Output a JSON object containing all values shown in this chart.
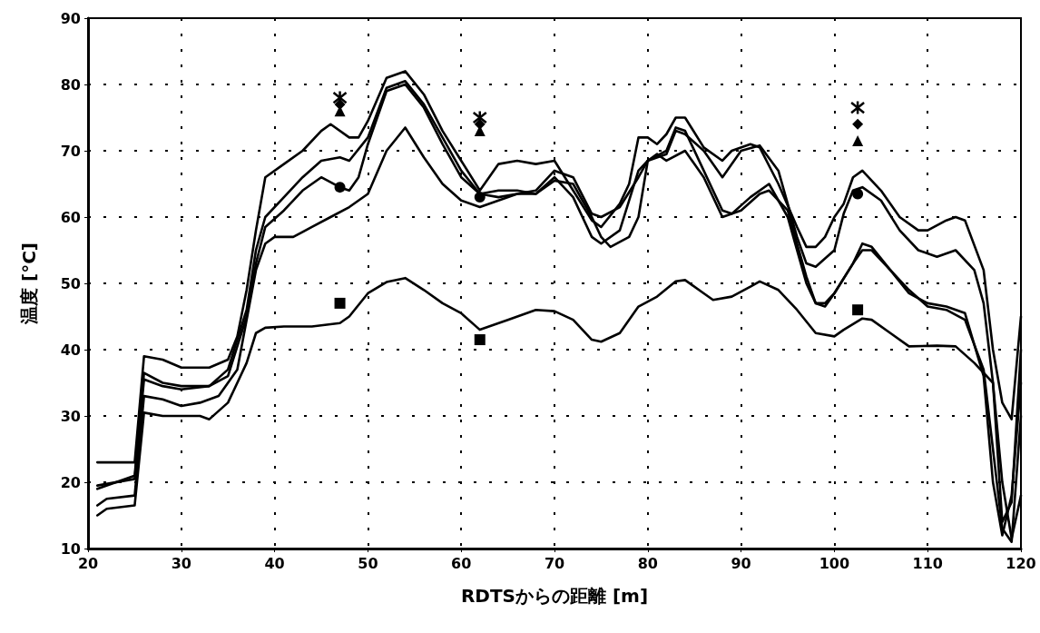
{
  "chart_data": {
    "type": "line",
    "xlabel": "RDTSからの距離 [m]",
    "ylabel": "温度 [°C]",
    "xlim": [
      20,
      120
    ],
    "xticks": [
      20,
      30,
      40,
      50,
      60,
      70,
      80,
      90,
      100,
      110,
      120
    ],
    "ylim": [
      10,
      90
    ],
    "yticks": [
      10,
      20,
      30,
      40,
      50,
      60,
      70,
      80,
      90
    ],
    "grid": true,
    "marker": "none",
    "line_style": "solid",
    "series": [
      {
        "color": "#000000",
        "x": [
          21,
          25,
          26,
          28,
          30,
          33,
          35,
          36,
          37,
          38,
          39,
          41,
          43,
          45,
          46,
          48,
          49,
          50,
          52,
          54,
          56,
          58,
          60,
          62,
          64,
          66,
          68,
          70,
          72,
          74,
          75,
          77,
          78,
          79,
          80,
          81,
          82,
          83,
          84,
          86,
          88,
          89,
          91,
          92,
          94,
          96,
          97,
          98,
          99,
          100,
          101,
          102,
          103,
          105,
          107,
          109,
          110,
          112,
          113,
          114,
          116,
          117,
          118,
          119,
          120
        ],
        "values": [
          23,
          23,
          39,
          38.5,
          37.3,
          37.3,
          38.5,
          42,
          49,
          58,
          66,
          68,
          70,
          73,
          74,
          72,
          72,
          74.5,
          81,
          82,
          78.5,
          73,
          68.5,
          64,
          68,
          68.5,
          68,
          68.5,
          64,
          59.5,
          58.5,
          62,
          65,
          72,
          72,
          71,
          72.5,
          75,
          75,
          70.5,
          68.5,
          70,
          71,
          70.5,
          65,
          58.5,
          55.5,
          55.5,
          57,
          60,
          62,
          66,
          67,
          64,
          60,
          58,
          58,
          59.5,
          60,
          59.5,
          52,
          40,
          32,
          29.5,
          45
        ]
      },
      {
        "color": "#000000",
        "x": [
          21,
          25,
          26,
          28,
          30,
          33,
          35,
          37,
          38,
          39,
          41,
          43,
          45,
          47,
          48,
          50,
          52,
          54,
          56,
          58,
          60,
          62,
          64,
          66,
          68,
          70,
          72,
          74,
          75,
          77,
          79,
          80,
          82,
          83,
          84,
          86,
          88,
          89,
          91,
          93,
          95,
          97,
          98,
          99,
          100,
          102,
          103,
          104,
          106,
          108,
          110,
          112,
          114,
          116,
          117,
          118,
          119,
          120
        ],
        "values": [
          19,
          21,
          36.5,
          35,
          34.5,
          34.5,
          37,
          46,
          55,
          60,
          63,
          66,
          68.5,
          69,
          68.5,
          72,
          79.5,
          80.5,
          77,
          72,
          67,
          63.5,
          64,
          64,
          63.5,
          66,
          63,
          57,
          56,
          58,
          67,
          68.5,
          70,
          73.5,
          73,
          67,
          61,
          60.5,
          63,
          65,
          60,
          50,
          47,
          47,
          48.5,
          53,
          56,
          55.5,
          52,
          48.5,
          47,
          46.5,
          45.5,
          36,
          20,
          12,
          18,
          35
        ]
      },
      {
        "color": "#000000",
        "x": [
          21,
          25,
          26,
          28,
          30,
          33,
          35,
          37,
          38,
          39,
          41,
          43,
          45,
          47,
          48,
          49,
          50,
          52,
          54,
          56,
          58,
          60,
          62,
          64,
          66,
          68,
          70,
          72,
          74,
          75,
          77,
          79,
          80,
          82,
          83,
          84,
          86,
          88,
          90,
          92,
          94,
          96,
          97,
          98,
          100,
          101,
          102,
          103,
          105,
          107,
          109,
          111,
          113,
          115,
          116,
          117,
          118,
          119,
          120
        ],
        "values": [
          19.5,
          20.5,
          35.5,
          34.5,
          34,
          34.5,
          36,
          45,
          53,
          58.5,
          61,
          64,
          66,
          64.5,
          64,
          66,
          71,
          79,
          80,
          76.5,
          71,
          66,
          63.5,
          63,
          63.5,
          64,
          67,
          66,
          60.5,
          60,
          61.5,
          66,
          68.5,
          69.5,
          73,
          72.5,
          70,
          66,
          70,
          70.8,
          67,
          57,
          53,
          52.5,
          55,
          60.5,
          64,
          64.5,
          62.5,
          58,
          55,
          54,
          55,
          52,
          47,
          35,
          14,
          17,
          40
        ]
      },
      {
        "color": "#000000",
        "x": [
          21,
          22,
          25,
          26,
          28,
          30,
          32,
          34,
          36,
          38,
          39,
          40,
          42,
          44,
          46,
          48,
          50,
          52,
          54,
          56,
          58,
          60,
          62,
          64,
          66,
          68,
          70,
          72,
          74,
          75,
          76,
          78,
          79,
          80,
          81,
          82,
          84,
          86,
          88,
          90,
          92,
          93,
          95,
          97,
          98,
          99,
          100,
          102,
          103,
          104,
          106,
          108,
          110,
          112,
          114,
          116,
          117,
          118,
          119,
          120
        ],
        "values": [
          16.5,
          17.5,
          18,
          33,
          32.5,
          31.5,
          32,
          33,
          37,
          52,
          56,
          57,
          57,
          58.5,
          60,
          61.5,
          63.5,
          70,
          73.5,
          69,
          65,
          62.5,
          61.5,
          62.5,
          63.5,
          63.5,
          65.5,
          65,
          60,
          57,
          55.5,
          57,
          60,
          68.5,
          69.5,
          68.5,
          70,
          66,
          60,
          61,
          63.5,
          64,
          61,
          51,
          47,
          46.5,
          48.5,
          53,
          55,
          55,
          52,
          49,
          46.5,
          46,
          44.5,
          37,
          25,
          13,
          11,
          30
        ]
      },
      {
        "color": "#000000",
        "x": [
          21,
          22,
          25,
          26,
          28,
          30,
          32,
          33,
          35,
          37,
          38,
          39,
          41,
          44,
          47,
          48,
          50,
          52,
          54,
          56,
          58,
          60,
          62,
          65,
          68,
          70,
          72,
          74,
          75,
          77,
          79,
          81,
          83,
          84,
          86,
          87,
          89,
          91,
          92,
          94,
          96,
          98,
          100,
          101,
          103,
          104,
          106,
          108,
          111,
          113,
          115,
          117,
          118,
          119,
          120
        ],
        "values": [
          15,
          16,
          16.5,
          30.5,
          30,
          30,
          30,
          29.5,
          32,
          38,
          42.5,
          43.3,
          43.5,
          43.5,
          44,
          45,
          48.5,
          50.2,
          50.8,
          49,
          47,
          45.5,
          43,
          44.5,
          46,
          45.8,
          44.5,
          41.5,
          41.2,
          42.5,
          46.5,
          48,
          50.3,
          50.5,
          48.5,
          47.5,
          48,
          49.5,
          50.3,
          49,
          46,
          42.5,
          42,
          43,
          44.7,
          44.5,
          42.5,
          40.5,
          40.6,
          40.5,
          38,
          35,
          20,
          11.5,
          18
        ]
      },
      {
        "type": "scatter",
        "marker": "cross",
        "color": "#000000",
        "x": [
          47,
          62,
          102.5
        ],
        "values": [
          78,
          75,
          76.5
        ]
      },
      {
        "type": "scatter",
        "marker": "diamond",
        "color": "#000000",
        "x": [
          47,
          62,
          102.5
        ],
        "values": [
          77,
          74,
          74
        ]
      },
      {
        "type": "scatter",
        "marker": "triangle",
        "color": "#000000",
        "x": [
          47,
          62,
          102.5
        ],
        "values": [
          76,
          73,
          71.5
        ]
      },
      {
        "type": "scatter",
        "marker": "circle",
        "color": "#000000",
        "x": [
          47,
          62,
          102.5
        ],
        "values": [
          64.5,
          63,
          63.5
        ]
      },
      {
        "type": "scatter",
        "marker": "square",
        "color": "#000000",
        "x": [
          47,
          62,
          102.5
        ],
        "values": [
          47,
          41.5,
          46
        ]
      }
    ]
  }
}
